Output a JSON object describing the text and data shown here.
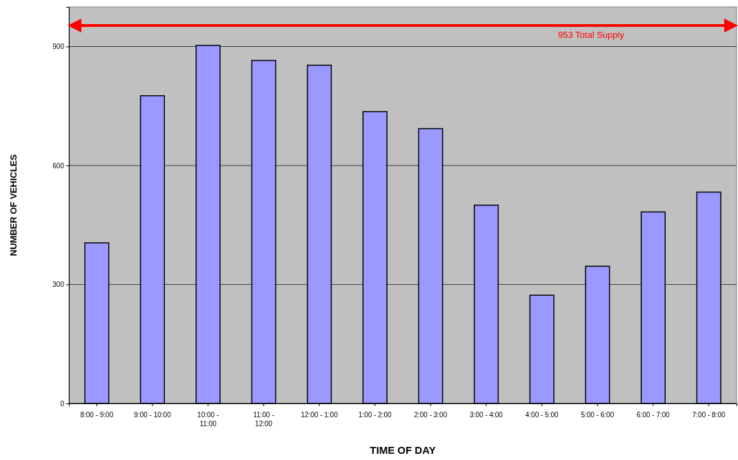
{
  "chart_data": {
    "type": "bar",
    "xlabel": "TIME OF DAY",
    "ylabel": "NUMBER OF VEHICLES",
    "categories": [
      "8:00 - 9:00",
      "9:00 - 10:00",
      "10:00 - 11:00",
      "11:00 - 12:00",
      "12:00 - 1:00",
      "1:00 - 2:00",
      "2:00 - 3:00",
      "3:00 - 4:00",
      "4:00 - 5:00",
      "5:00 - 6:00",
      "6:00 - 7:00",
      "7:00 - 8:00"
    ],
    "values": [
      405,
      776,
      903,
      865,
      853,
      736,
      693,
      500,
      273,
      346,
      483,
      533
    ],
    "color": "#9999ff",
    "ylim": [
      0,
      1000
    ],
    "yticks": [
      0,
      300,
      600,
      900
    ],
    "grid": "y",
    "ref_lines": [
      {
        "axis": "y",
        "value": 953,
        "label": "953 Total Supply",
        "color": "#ff0000"
      }
    ]
  }
}
